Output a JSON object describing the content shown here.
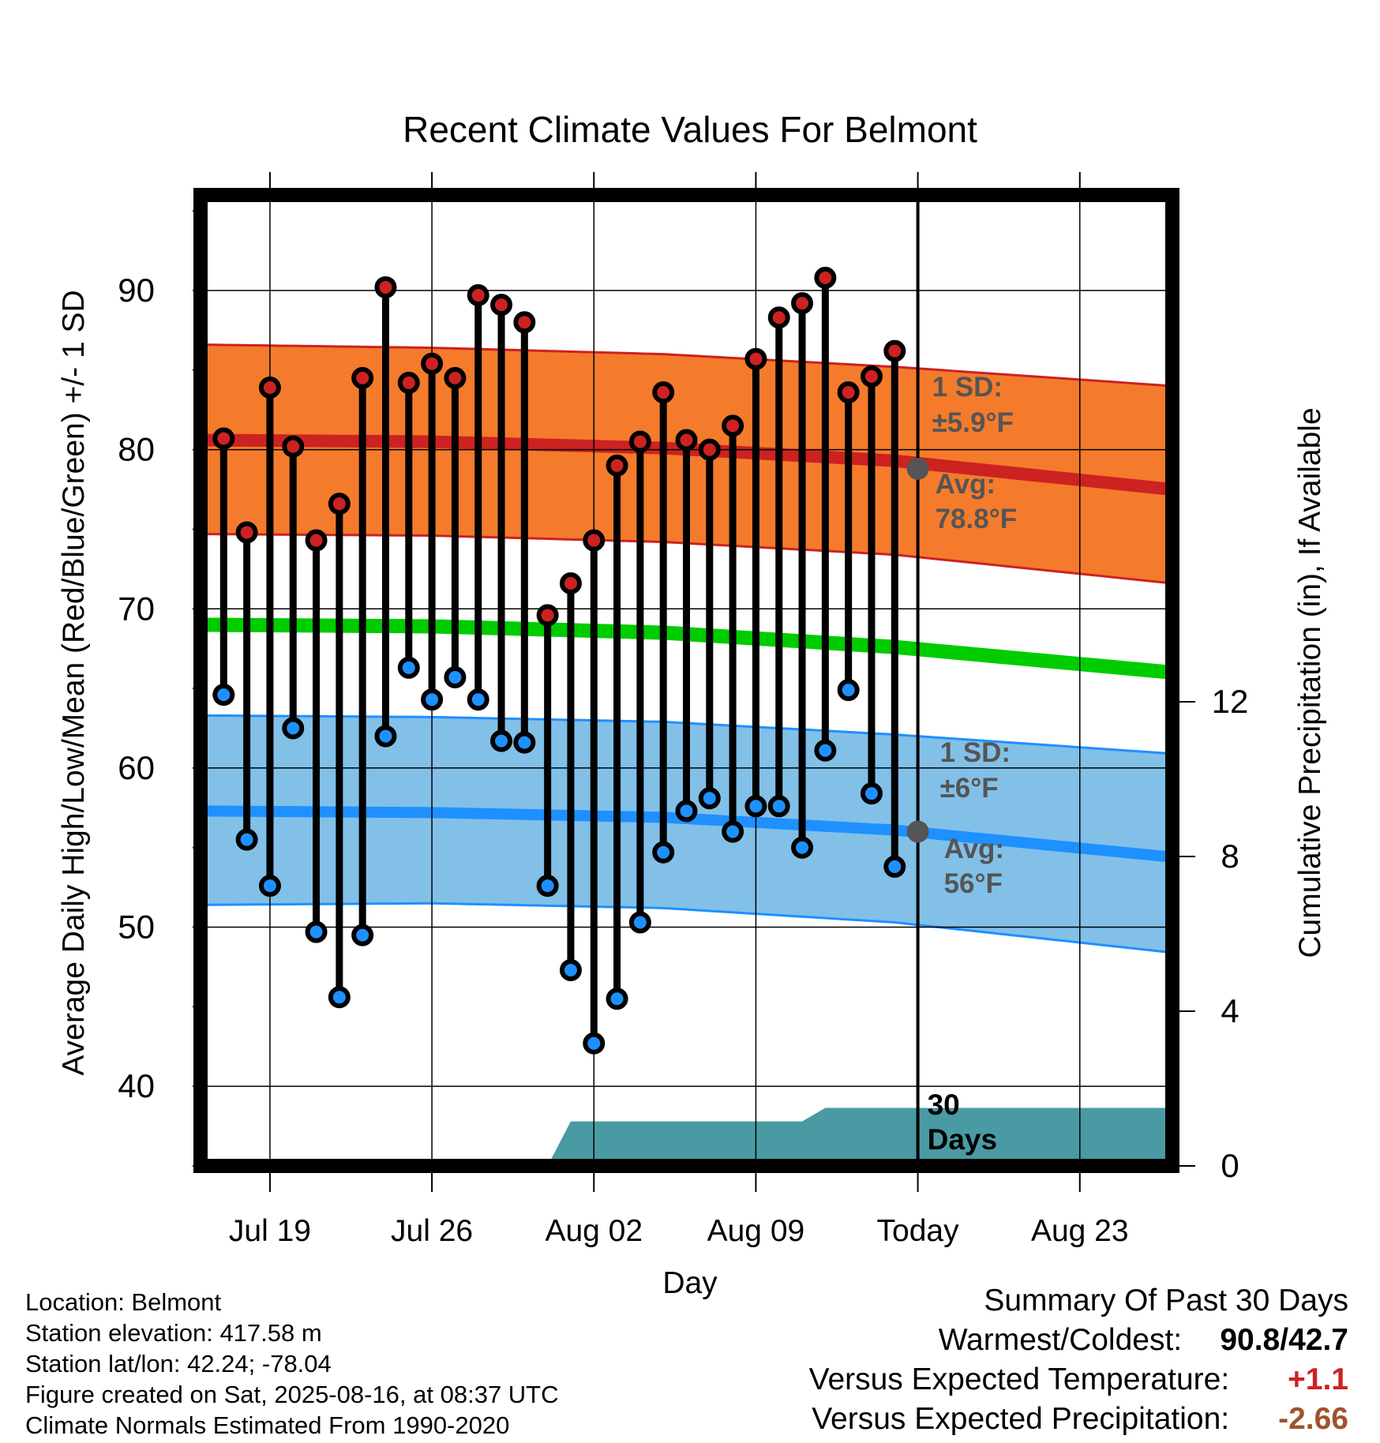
{
  "chart_data": {
    "type": "line",
    "title": "Recent Climate Values For Belmont",
    "xlabel": "Day",
    "ylabel": "Average Daily High/Low/Mean (Red/Blue/Green) +/- 1 SD",
    "y2label": "Cumulative Precipitation (in), If Available",
    "ylim": [
      35,
      96
    ],
    "y_ticks": [
      40,
      50,
      60,
      70,
      80,
      90
    ],
    "y2_ticks": [
      0,
      4,
      8,
      12
    ],
    "y2lim": [
      0,
      12
    ],
    "xlim_days": [
      "Jul 16",
      "Aug 27"
    ],
    "x_ticks": [
      {
        "date": "Jul 19",
        "label": "Jul 19"
      },
      {
        "date": "Jul 26",
        "label": "Jul 26"
      },
      {
        "date": "Aug 02",
        "label": "Aug 02"
      },
      {
        "date": "Aug 09",
        "label": "Aug 09"
      },
      {
        "date": "Aug 16",
        "label": "Today"
      },
      {
        "date": "Aug 23",
        "label": "Aug 23"
      }
    ],
    "today": "Aug 16",
    "dates": [
      "Jul 17",
      "Jul 18",
      "Jul 19",
      "Jul 20",
      "Jul 21",
      "Jul 22",
      "Jul 23",
      "Jul 24",
      "Jul 25",
      "Jul 26",
      "Jul 27",
      "Jul 28",
      "Jul 29",
      "Jul 30",
      "Jul 31",
      "Aug 01",
      "Aug 02",
      "Aug 03",
      "Aug 04",
      "Aug 05",
      "Aug 06",
      "Aug 07",
      "Aug 08",
      "Aug 09",
      "Aug 10",
      "Aug 11",
      "Aug 12",
      "Aug 13",
      "Aug 14",
      "Aug 15"
    ],
    "series": [
      {
        "name": "High",
        "color": "#cc2222",
        "values": [
          80.7,
          74.8,
          83.9,
          80.2,
          74.3,
          76.6,
          84.5,
          90.2,
          84.2,
          85.4,
          84.5,
          89.7,
          89.1,
          88.0,
          69.6,
          71.6,
          74.3,
          79.0,
          80.5,
          83.6,
          80.6,
          80.0,
          81.5,
          85.7,
          88.3,
          89.2,
          90.8,
          83.6,
          84.6,
          86.2
        ]
      },
      {
        "name": "Low",
        "color": "#1e90ff",
        "values": [
          64.6,
          55.5,
          52.6,
          62.5,
          49.7,
          45.6,
          49.5,
          62.0,
          66.3,
          64.3,
          65.7,
          64.3,
          61.7,
          61.6,
          52.6,
          47.3,
          42.7,
          45.5,
          50.3,
          54.7,
          57.3,
          58.1,
          56.0,
          57.6,
          57.6,
          55.0,
          61.1,
          64.9,
          58.4,
          53.8
        ]
      }
    ],
    "normals": {
      "high_mean": [
        80.6,
        80.5,
        80.1,
        79.3,
        77.5
      ],
      "high_upper": [
        86.6,
        86.4,
        86.0,
        85.2,
        84.0
      ],
      "high_lower": [
        74.7,
        74.6,
        74.2,
        73.4,
        71.6
      ],
      "mean": [
        69.0,
        68.9,
        68.5,
        67.6,
        66.0
      ],
      "low_mean": [
        57.3,
        57.2,
        56.9,
        56.1,
        54.4
      ],
      "low_upper": [
        63.3,
        63.2,
        62.9,
        62.1,
        60.9
      ],
      "low_lower": [
        51.4,
        51.5,
        51.2,
        50.3,
        48.4
      ],
      "at_dates": [
        "Jul 16",
        "Jul 26",
        "Aug 05",
        "Aug 15",
        "Aug 27"
      ],
      "band_color_high": "#f47b2b",
      "band_color_low": "#82c0e8",
      "mean_color": "#00cc00"
    },
    "precip_cumulative": {
      "dates": [
        "Jul 16",
        "Jul 31",
        "Aug 01",
        "Aug 11",
        "Aug 12",
        "Aug 27"
      ],
      "values": [
        0.0,
        0.0,
        1.15,
        1.15,
        1.5,
        1.5
      ],
      "color": "#4a9aa3"
    },
    "annotations": {
      "high_sd_label": "1 SD:",
      "high_sd_value": "±5.9°F",
      "high_avg_label": "Avg:",
      "high_avg_value": "78.8°F",
      "high_avg": 78.8,
      "low_sd_label": "1 SD:",
      "low_sd_value": "±6°F",
      "low_avg_label": "Avg:",
      "low_avg_value": "56°F",
      "low_avg": 56.0,
      "days_label_line1": "30",
      "days_label_line2": "Days"
    }
  },
  "footer": {
    "location": "Location: Belmont",
    "elevation": "Station elevation: 417.58 m",
    "latlon": "Station lat/lon: 42.24; -78.04",
    "created": "Figure created on Sat, 2025-08-16, at 08:37 UTC",
    "normals": "Climate Normals Estimated From 1990-2020"
  },
  "summary": {
    "title": "Summary Of Past 30 Days",
    "warmest_label": "Warmest/Coldest:",
    "warmest_value": "90.8/42.7",
    "temp_label": "Versus Expected Temperature:",
    "temp_value": "+1.1",
    "temp_color": "#cc2222",
    "precip_label": "Versus Expected Precipitation:",
    "precip_value": "-2.66",
    "precip_color": "#a0522d"
  }
}
